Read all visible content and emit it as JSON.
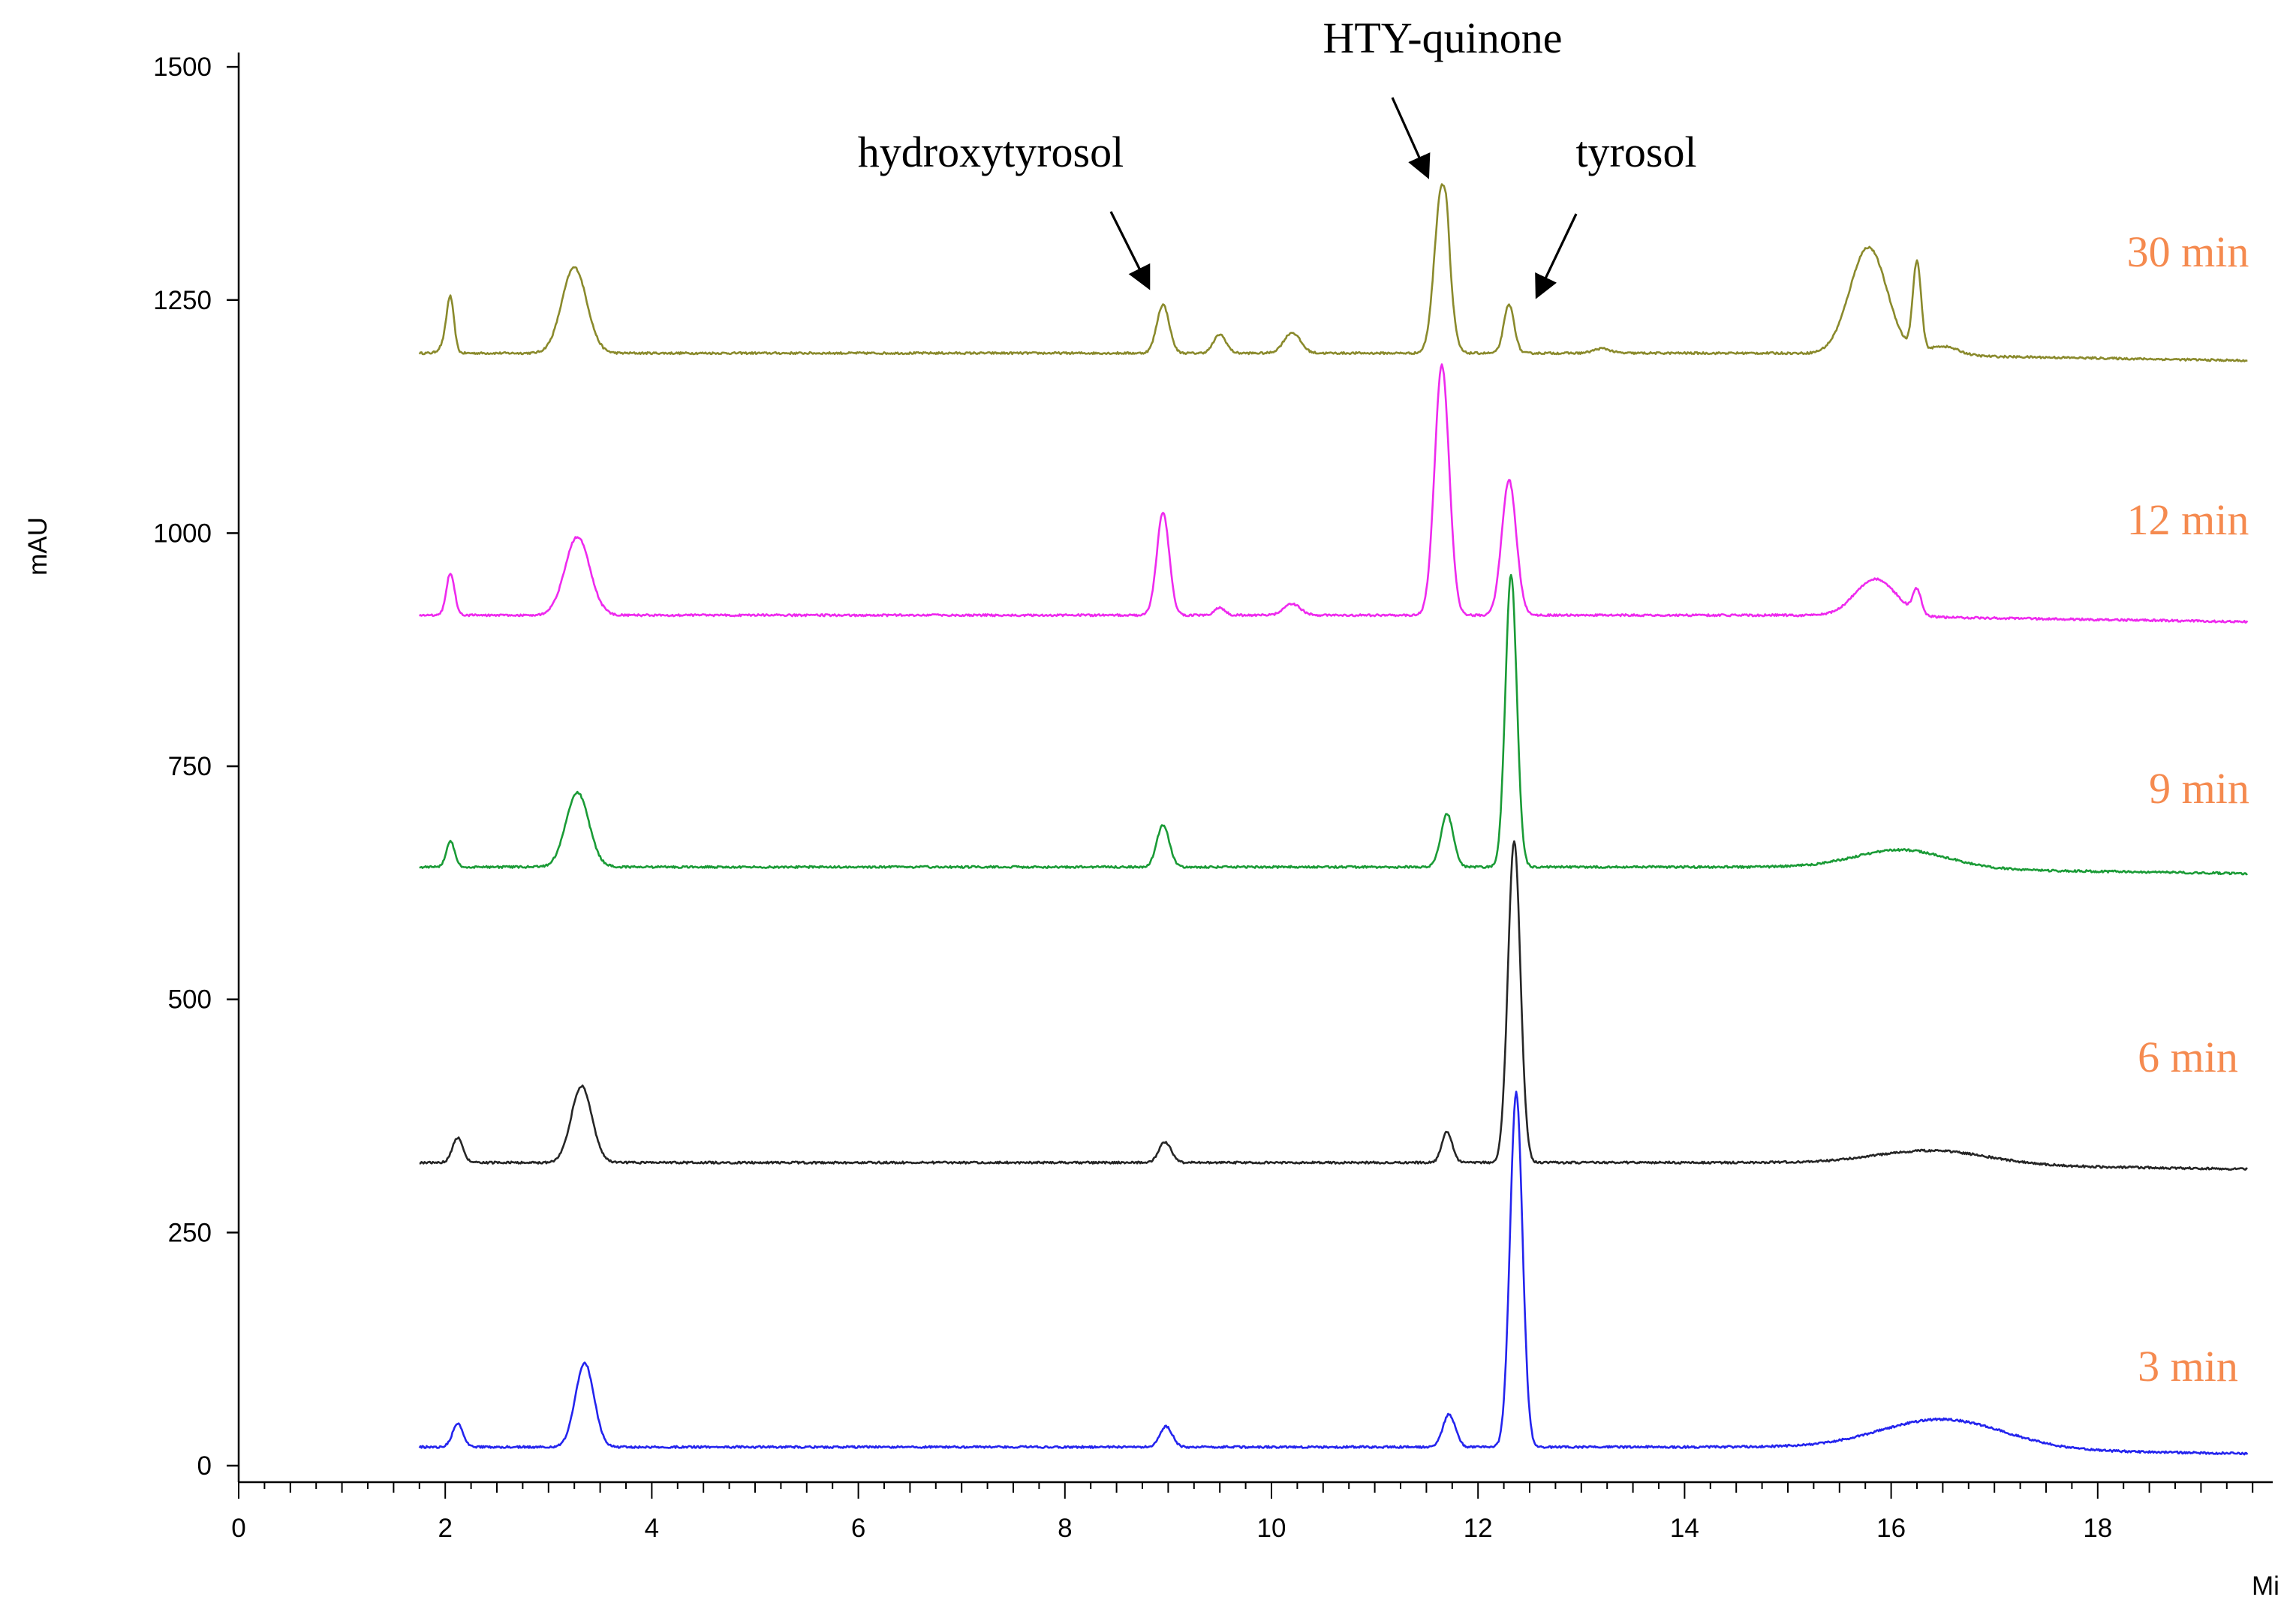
{
  "chart_data": {
    "type": "line",
    "xlabel": "Mi",
    "ylabel": "mAU",
    "xlim": [
      0,
      19.5
    ],
    "ylim": [
      -25,
      1590
    ],
    "xticks": [
      0,
      2,
      4,
      6,
      8,
      10,
      12,
      14,
      16,
      18
    ],
    "yticks": [
      0,
      250,
      500,
      750,
      1000,
      1250,
      1500
    ],
    "grid": false,
    "annotations": [
      {
        "text": "hydroxytyrosol",
        "x": 8.95,
        "y": 1245
      },
      {
        "text": "HTY-quinone",
        "x": 11.6,
        "y": 1392
      },
      {
        "text": "tyrosol",
        "x": 12.5,
        "y": 1250
      }
    ],
    "series": [
      {
        "name": "30 min",
        "color": "#8a8a2c",
        "baseline": 1193,
        "endvalue": 1185,
        "peaks": [
          [
            2.05,
            55,
            0.035
          ],
          [
            2.0,
            10,
            0.05
          ],
          [
            3.25,
            92,
            0.12
          ],
          [
            8.95,
            52,
            0.06
          ],
          [
            9.5,
            20,
            0.06
          ],
          [
            10.2,
            22,
            0.08
          ],
          [
            11.65,
            180,
            0.07
          ],
          [
            11.7,
            20,
            0.02
          ],
          [
            12.3,
            52,
            0.05
          ],
          [
            13.2,
            5,
            0.08
          ],
          [
            15.78,
            115,
            0.18
          ],
          [
            16.25,
            95,
            0.04
          ],
          [
            16.5,
            10,
            0.15
          ]
        ]
      },
      {
        "name": "12 min",
        "color": "#ee2aee",
        "baseline": 912,
        "endvalue": 905,
        "peaks": [
          [
            2.05,
            45,
            0.04
          ],
          [
            3.28,
            84,
            0.12
          ],
          [
            8.95,
            110,
            0.06
          ],
          [
            9.5,
            8,
            0.05
          ],
          [
            10.2,
            12,
            0.08
          ],
          [
            11.65,
            268,
            0.07
          ],
          [
            12.3,
            145,
            0.07
          ],
          [
            15.85,
            40,
            0.2
          ],
          [
            16.25,
            25,
            0.04
          ]
        ]
      },
      {
        "name": "9 min",
        "color": "#1a9b36",
        "baseline": 642,
        "endvalue": 635,
        "peaks": [
          [
            2.05,
            28,
            0.04
          ],
          [
            3.28,
            80,
            0.11
          ],
          [
            8.95,
            45,
            0.06
          ],
          [
            11.7,
            57,
            0.06
          ],
          [
            12.32,
            314,
            0.055
          ],
          [
            16.1,
            20,
            0.45
          ]
        ]
      },
      {
        "name": "6 min",
        "color": "#262626",
        "baseline": 325,
        "endvalue": 318,
        "peaks": [
          [
            2.12,
            27,
            0.05
          ],
          [
            3.32,
            82,
            0.1
          ],
          [
            8.97,
            22,
            0.06
          ],
          [
            11.7,
            33,
            0.05
          ],
          [
            12.35,
            345,
            0.06
          ],
          [
            16.4,
            15,
            0.55
          ]
        ]
      },
      {
        "name": "3 min",
        "color": "#2424ee",
        "baseline": 20,
        "endvalue": 13,
        "peaks": [
          [
            2.12,
            25,
            0.05
          ],
          [
            3.35,
            90,
            0.09
          ],
          [
            8.98,
            22,
            0.06
          ],
          [
            11.72,
            35,
            0.06
          ],
          [
            12.37,
            380,
            0.06
          ],
          [
            16.5,
            32,
            0.6
          ]
        ]
      }
    ]
  }
}
